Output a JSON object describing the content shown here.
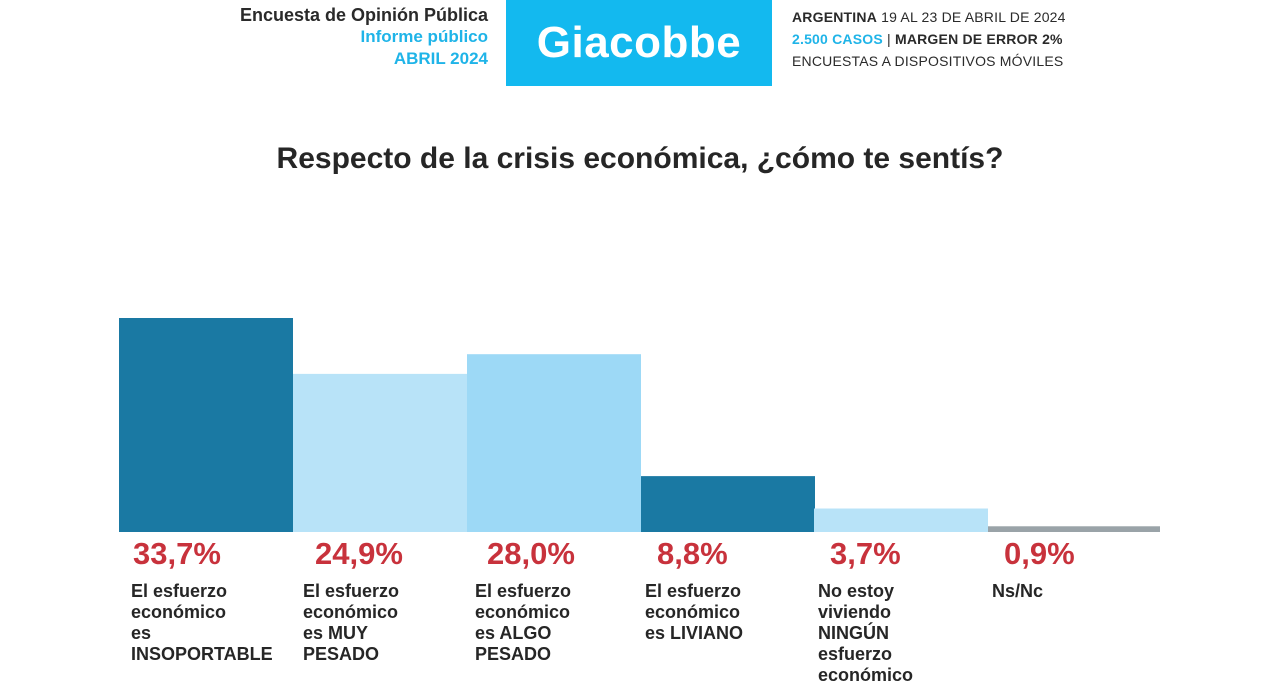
{
  "header": {
    "survey_title": "Encuesta de Opinión Pública",
    "report_type": "Informe público",
    "report_date": "ABRIL 2024",
    "brand": "Giacobbe",
    "country": "ARGENTINA",
    "field_dates": "19 AL 23 DE ABRIL DE 2024",
    "cases": "2.500 CASOS",
    "separator": "|",
    "margin_label": "MARGEN DE ERROR",
    "margin_value": "2%",
    "method": "ENCUESTAS A DISPOSITIVOS MÓVILES"
  },
  "colors": {
    "brand": "#13b9ef",
    "value_text": "#c8323c"
  },
  "chart_data": {
    "type": "bar",
    "title": "Respecto de la crisis económica, ¿cómo te sentís?",
    "categories": [
      "El esfuerzo\neconómico\nes\nINSOPORTABLE",
      "El esfuerzo\neconómico\nes MUY\nPESADO",
      "El esfuerzo\neconómico\nes ALGO\nPESADO",
      "El esfuerzo\neconómico\nes LIVIANO",
      "No estoy\nviviendo\nNINGÚN\nesfuerzo\neconómico",
      "Ns/Nc"
    ],
    "values": [
      33.7,
      24.9,
      28.0,
      8.8,
      3.7,
      0.9
    ],
    "value_labels": [
      "33,7%",
      "24,9%",
      "28,0%",
      "8,8%",
      "3,7%",
      "0,9%"
    ],
    "bar_colors": [
      "#1a79a3",
      "#b8e3f8",
      "#9dd9f6",
      "#1a79a3",
      "#b8e3f8",
      "#9aa3a8"
    ],
    "ylim": [
      0,
      35
    ],
    "grid": false,
    "xlabel": "",
    "ylabel": ""
  }
}
